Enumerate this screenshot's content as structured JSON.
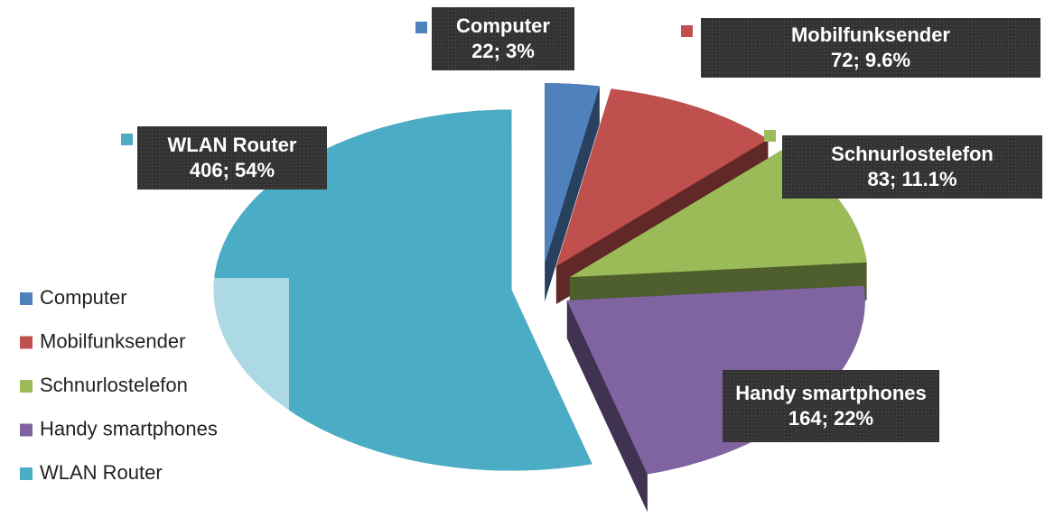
{
  "chart_data": {
    "type": "pie3d",
    "categories": [
      "Computer",
      "Mobilfunksender",
      "Schnurlostelefon",
      "Handy smartphones",
      "WLAN Router"
    ],
    "values": [
      22,
      72,
      83,
      164,
      406
    ],
    "value_labels": [
      "22; 3%",
      "72; 9.6%",
      "83; 11.1%",
      "164; 22%",
      "406; 54%"
    ],
    "colors": [
      "#4f81bd",
      "#c0504d",
      "#9bbb59",
      "#8064a2",
      "#4bacc6"
    ],
    "legend": "left"
  }
}
